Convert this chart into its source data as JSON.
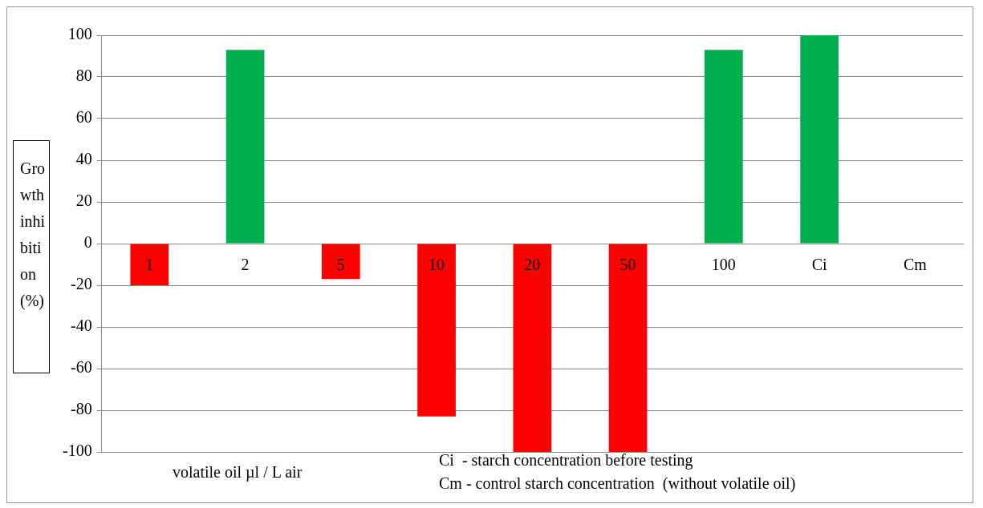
{
  "chart_data": {
    "type": "bar",
    "xlabel": "volatile oil µl / L air",
    "ylabel": "Growth inhibition (%)",
    "categories": [
      "1",
      "2",
      "5",
      "10",
      "20",
      "50",
      "100",
      "Ci",
      "Cm"
    ],
    "values": [
      -20,
      93,
      -17,
      -83,
      -100,
      -100,
      93,
      100,
      0
    ],
    "colors": [
      "#ff0000",
      "#00b050",
      "#ff0000",
      "#ff0000",
      "#ff0000",
      "#ff0000",
      "#00b050",
      "#00b050",
      "#00b050"
    ],
    "ylim": [
      -100,
      100
    ],
    "yticks": [
      -100,
      -80,
      -60,
      -40,
      -20,
      0,
      20,
      40,
      60,
      80,
      100
    ],
    "grid": "y",
    "legend": false,
    "annotations": [
      "Ci  - starch concentration before testing",
      "Cm - control starch concentration  (without volatile oil)"
    ]
  }
}
